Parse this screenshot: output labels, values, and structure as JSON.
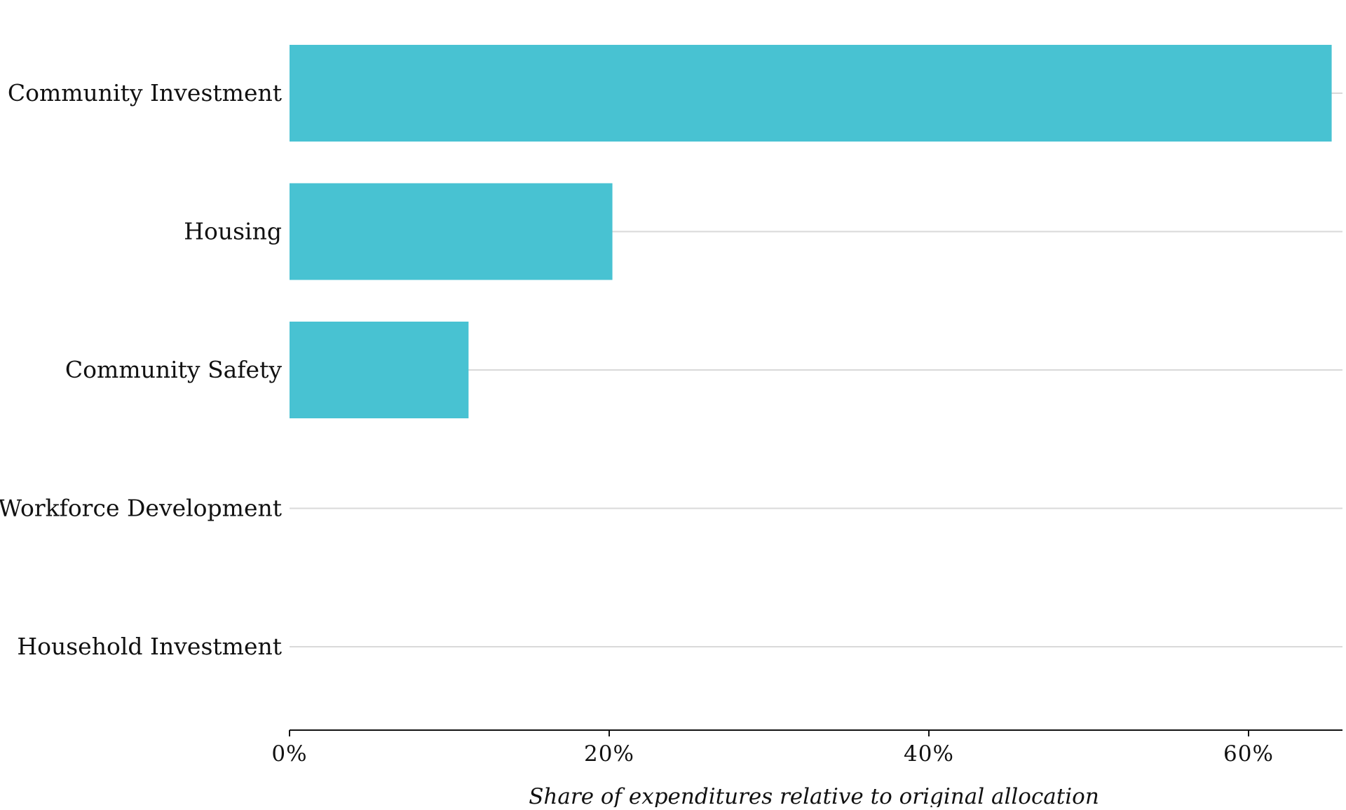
{
  "chart_data": {
    "type": "bar",
    "orientation": "horizontal",
    "categories": [
      "Community Investment",
      "Housing",
      "Community Safety",
      "Workforce Development",
      "Household Investment"
    ],
    "values": [
      65.2,
      20.2,
      11.2,
      0,
      0
    ],
    "xlabel": "Share of expenditures relative to original allocation",
    "ylabel": "",
    "xlim": [
      0,
      66
    ],
    "xticks": [
      0,
      20,
      40,
      60
    ],
    "xtick_labels": [
      "0%",
      "20%",
      "40%",
      "60%"
    ],
    "grid": true,
    "bar_color": "#48C2D2"
  }
}
